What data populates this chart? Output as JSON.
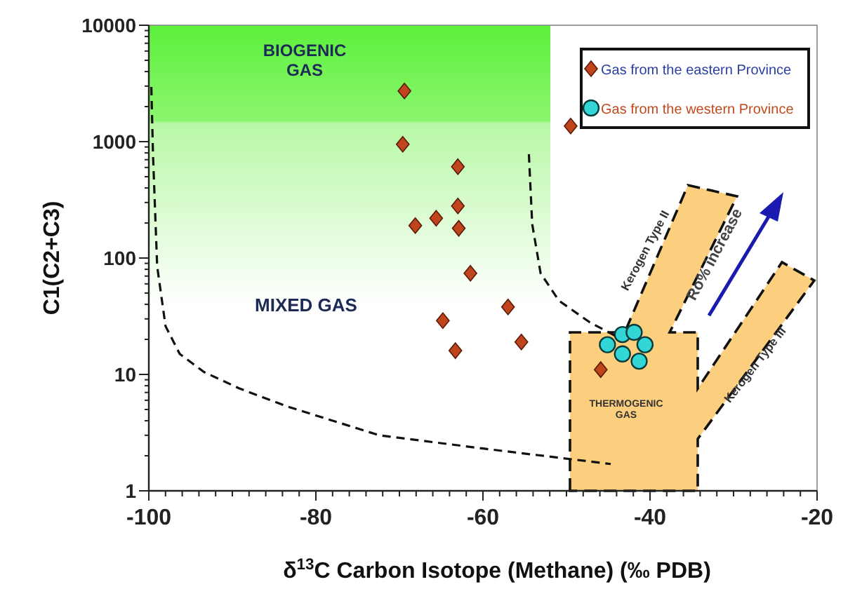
{
  "chart_data": {
    "type": "scatter",
    "xlabel": "δ$^{13}$C Carbon Isotope (Methane) (‰ PDB)",
    "ylabel": "C1(C2+C3)",
    "log": "y",
    "xlim": [
      -100,
      -20
    ],
    "xticks": [
      -100,
      -80,
      -60,
      -40,
      -20
    ],
    "ylim": [
      1,
      10000
    ],
    "yticks": [
      1,
      10,
      100,
      1000,
      10000
    ],
    "grid": false,
    "legend": "top right",
    "series": [
      {
        "name": "Gas from the eastern Province",
        "color": "#c0441c",
        "marker": "diamond",
        "x": [
          -69.4,
          -69.6,
          -63.0,
          -63.0,
          -65.6,
          -68.1,
          -62.9,
          -61.5,
          -57.0,
          -64.8,
          -55.4,
          -63.3,
          -49.5,
          -45.9
        ],
        "values": [
          2720,
          950,
          610,
          280,
          220,
          190,
          180,
          74,
          38,
          29,
          19,
          16,
          1360,
          11
        ]
      },
      {
        "name": "Gas from the western Province",
        "color": "#33d6d6",
        "marker": "circle",
        "x": [
          -43.3,
          -41.9,
          -40.6,
          -45.1,
          -43.3,
          -41.3
        ],
        "values": [
          22,
          23,
          18,
          18,
          15,
          13
        ]
      },
      {
        "type": "line",
        "color": "#111111",
        "line_style": "dashed",
        "marker": "none",
        "x": [
          -99.7,
          -99.5,
          -99.0,
          -98.0,
          -96.3,
          -93.4,
          -89.2,
          -83.4,
          -72.4,
          -59.8,
          -44.7
        ],
        "values": [
          2950,
          780,
          85,
          26,
          15,
          10.5,
          7.6,
          5.3,
          3.0,
          2.3,
          1.7
        ]
      },
      {
        "type": "line",
        "color": "#111111",
        "line_style": "dashed",
        "marker": "none",
        "x": [
          -54.5,
          -54.1,
          -53.1,
          -50.9,
          -47.2,
          -43.9
        ],
        "values": [
          780,
          195,
          74,
          43,
          28,
          21
        ]
      }
    ],
    "annotations": [
      "BIOGENIC GAS",
      "MIXED GAS",
      "THERMOGENIC GAS",
      "Kerogen Type II",
      "Kerogen Type III",
      "Ro% increase"
    ]
  }
}
